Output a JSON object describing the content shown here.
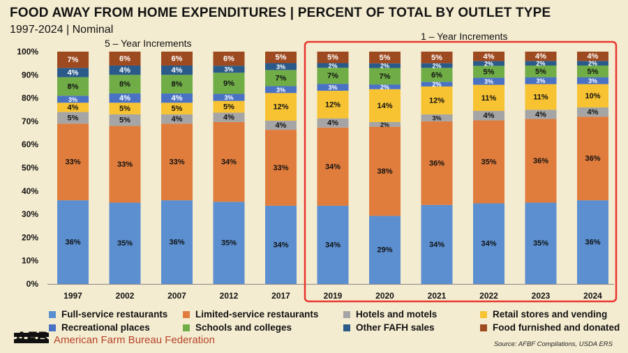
{
  "header": {
    "title": "FOOD AWAY FROM HOME EXPENDITURES | PERCENT OF TOTAL BY OUTLET TYPE",
    "subtitle": "1997-2024 | Nominal"
  },
  "annotations": {
    "five_year": "5 – Year Increments",
    "one_year": "1 – Year Increments",
    "highlight_color": "#e8352e"
  },
  "footer": {
    "org": "American Farm Bureau Federation",
    "org_mark": "AFB",
    "source": "Source: AFBF Compilations, USDA ERS"
  },
  "chart_data": {
    "type": "bar",
    "stacked": true,
    "categories": [
      "1997",
      "2002",
      "2007",
      "2012",
      "2017",
      "2019",
      "2020",
      "2021",
      "2022",
      "2023",
      "2024"
    ],
    "ylim": [
      0,
      100
    ],
    "yticks": [
      "0%",
      "10%",
      "20%",
      "30%",
      "40%",
      "50%",
      "60%",
      "70%",
      "80%",
      "90%",
      "100%"
    ],
    "grid": false,
    "legend_position": "bottom",
    "series": [
      {
        "name": "Full-service restaurants",
        "color": "#5b8fd0",
        "values": [
          36,
          35,
          36,
          35,
          34,
          34,
          29,
          34,
          34,
          35,
          36
        ]
      },
      {
        "name": "Limited-service restaurants",
        "color": "#e07c3c",
        "values": [
          33,
          33,
          33,
          34,
          33,
          34,
          38,
          36,
          35,
          36,
          36
        ]
      },
      {
        "name": "Hotels and motels",
        "color": "#a5a5a5",
        "values": [
          5,
          5,
          4,
          4,
          4,
          4,
          2,
          3,
          4,
          4,
          4
        ]
      },
      {
        "name": "Retail stores and vending",
        "color": "#f8c332",
        "values": [
          4,
          5,
          5,
          5,
          12,
          12,
          14,
          12,
          11,
          11,
          10
        ]
      },
      {
        "name": "Recreational places",
        "color": "#4a72c4",
        "values": [
          3,
          4,
          4,
          3,
          3,
          3,
          2,
          2,
          3,
          3,
          3
        ]
      },
      {
        "name": "Schools and colleges",
        "color": "#70ad47",
        "values": [
          8,
          8,
          8,
          9,
          7,
          7,
          7,
          6,
          5,
          5,
          5
        ]
      },
      {
        "name": "Other FAFH sales",
        "color": "#2a5a8a",
        "values": [
          4,
          4,
          4,
          3,
          3,
          2,
          2,
          2,
          2,
          2,
          2
        ]
      },
      {
        "name": "Food furnished and donated",
        "color": "#9e4a21",
        "values": [
          7,
          6,
          6,
          6,
          5,
          5,
          5,
          5,
          4,
          4,
          4
        ]
      }
    ]
  }
}
